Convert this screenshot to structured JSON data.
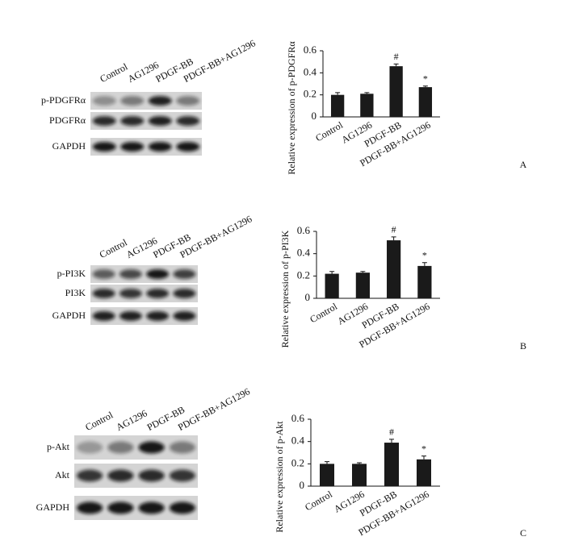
{
  "chart_data": [
    {
      "type": "bar",
      "ylabel": "Relative expression of p-PDGFRα",
      "panel": "A",
      "categories": [
        "Control",
        "AG1296",
        "PDGF-BB",
        "PDGF-BB+AG1296"
      ],
      "values": [
        0.2,
        0.21,
        0.46,
        0.27
      ],
      "errors": [
        0.02,
        0.01,
        0.02,
        0.01
      ],
      "markers": [
        null,
        null,
        "#",
        "*"
      ],
      "color": "#1a1a1a",
      "ylim": [
        0,
        0.6
      ],
      "yticks": [
        0,
        0.2,
        0.4,
        0.6
      ]
    },
    {
      "type": "bar",
      "ylabel": "Relative expression of p-PI3K",
      "panel": "B",
      "categories": [
        "Control",
        "AG1296",
        "PDGF-BB",
        "PDGF-BB+AG1296"
      ],
      "values": [
        0.22,
        0.23,
        0.52,
        0.29
      ],
      "errors": [
        0.02,
        0.01,
        0.03,
        0.03
      ],
      "markers": [
        null,
        null,
        "#",
        "*"
      ],
      "color": "#1a1a1a",
      "ylim": [
        0,
        0.6
      ],
      "yticks": [
        0,
        0.2,
        0.4,
        0.6
      ]
    },
    {
      "type": "bar",
      "ylabel": "Relative expression of p-Akt",
      "panel": "C",
      "categories": [
        "Control",
        "AG1296",
        "PDGF-BB",
        "PDGF-BB+AG1296"
      ],
      "values": [
        0.2,
        0.2,
        0.39,
        0.24
      ],
      "errors": [
        0.02,
        0.01,
        0.03,
        0.03
      ],
      "markers": [
        null,
        null,
        "#",
        "*"
      ],
      "color": "#1a1a1a",
      "ylim": [
        0,
        0.6
      ],
      "yticks": [
        0,
        0.2,
        0.4,
        0.6
      ]
    }
  ],
  "blots": [
    {
      "lanes": [
        "Control",
        "AG1296",
        "PDGF-BB",
        "PDGF-BB+AG1296"
      ],
      "rows": [
        "p-PDGFRα",
        "PDGFRα",
        "GAPDH"
      ]
    },
    {
      "lanes": [
        "Control",
        "AG1296",
        "PDGF-BB",
        "PDGF-BB+AG1296"
      ],
      "rows": [
        "p-PI3K",
        "PI3K",
        "GAPDH"
      ]
    },
    {
      "lanes": [
        "Control",
        "AG1296",
        "PDGF-BB",
        "PDGF-BB+AG1296"
      ],
      "rows": [
        "p-Akt",
        "Akt",
        "GAPDH"
      ]
    }
  ]
}
